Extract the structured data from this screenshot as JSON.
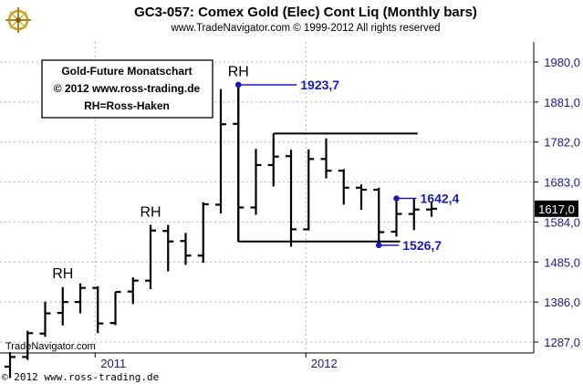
{
  "title": "GC3-057:  Comex Gold (Elec) Cont Liq  (Monthly bars)",
  "subtitle": "www.TradeNavigator.com © 1999-2012 All rights reserved",
  "watermark": "TradeNavigator.com",
  "footer": "© 2012  www.ross-trading.de",
  "info_box": [
    "Gold-Future Monatschart",
    "© 2012  www.ross-trading.de",
    "RH=Ross-Haken"
  ],
  "colors": {
    "bars": "#000000",
    "annotation": "#1a1ab8",
    "grid": "#b4b4b4",
    "current_price_bg": "#000000"
  },
  "chart_data": {
    "type": "ohlc",
    "interval": "monthly",
    "y_ticks": [
      "1287,0",
      "1386,0",
      "1485,0",
      "1584,0",
      "1683,0",
      "1782,0",
      "1881,0",
      "1980,0"
    ],
    "y_tick_values": [
      1287,
      1386,
      1485,
      1584,
      1683,
      1782,
      1881,
      1980
    ],
    "ylim": [
      1265,
      2015
    ],
    "x_ticks": [
      "2011",
      "2012"
    ],
    "grid": true,
    "current_price": "1617,0",
    "current_price_value": 1617,
    "bars": [
      {
        "date": "2010-08",
        "open": 1226,
        "high": 1262,
        "low": 1198,
        "close": 1250
      },
      {
        "date": "2010-09",
        "open": 1250,
        "high": 1315,
        "low": 1243,
        "close": 1309
      },
      {
        "date": "2010-10",
        "open": 1308,
        "high": 1387,
        "low": 1300,
        "close": 1358
      },
      {
        "date": "2010-11",
        "open": 1359,
        "high": 1423,
        "low": 1328,
        "close": 1386
      },
      {
        "date": "2010-12",
        "open": 1386,
        "high": 1432,
        "low": 1358,
        "close": 1421
      },
      {
        "date": "2011-01",
        "open": 1421,
        "high": 1425,
        "low": 1309,
        "close": 1333
      },
      {
        "date": "2011-02",
        "open": 1334,
        "high": 1411,
        "low": 1329,
        "close": 1411
      },
      {
        "date": "2011-03",
        "open": 1412,
        "high": 1447,
        "low": 1381,
        "close": 1439
      },
      {
        "date": "2011-04",
        "open": 1439,
        "high": 1577,
        "low": 1418,
        "close": 1563
      },
      {
        "date": "2011-05",
        "open": 1562,
        "high": 1577,
        "low": 1462,
        "close": 1536
      },
      {
        "date": "2011-06",
        "open": 1537,
        "high": 1557,
        "low": 1478,
        "close": 1501
      },
      {
        "date": "2011-07",
        "open": 1501,
        "high": 1633,
        "low": 1483,
        "close": 1628
      },
      {
        "date": "2011-08",
        "open": 1627,
        "high": 1913,
        "low": 1605,
        "close": 1826
      },
      {
        "date": "2011-09",
        "open": 1827,
        "high": 1923,
        "low": 1535,
        "close": 1620
      },
      {
        "date": "2011-10",
        "open": 1620,
        "high": 1765,
        "low": 1602,
        "close": 1725
      },
      {
        "date": "2011-11",
        "open": 1725,
        "high": 1803,
        "low": 1672,
        "close": 1746
      },
      {
        "date": "2011-12",
        "open": 1747,
        "high": 1763,
        "low": 1523,
        "close": 1566
      },
      {
        "date": "2012-01",
        "open": 1566,
        "high": 1764,
        "low": 1563,
        "close": 1740
      },
      {
        "date": "2012-02",
        "open": 1740,
        "high": 1791,
        "low": 1692,
        "close": 1711
      },
      {
        "date": "2012-03",
        "open": 1711,
        "high": 1715,
        "low": 1627,
        "close": 1669
      },
      {
        "date": "2012-04",
        "open": 1669,
        "high": 1677,
        "low": 1614,
        "close": 1664
      },
      {
        "date": "2012-05",
        "open": 1664,
        "high": 1669,
        "low": 1527,
        "close": 1559
      },
      {
        "date": "2012-06",
        "open": 1560,
        "high": 1641,
        "low": 1548,
        "close": 1604
      },
      {
        "date": "2012-07",
        "open": 1604,
        "high": 1642,
        "low": 1564,
        "close": 1615
      },
      {
        "date": "2012-08",
        "open": 1615,
        "high": 1632,
        "low": 1597,
        "close": 1617
      }
    ],
    "annotations": [
      {
        "label": "RH",
        "date": "2010-11",
        "price": 1432
      },
      {
        "label": "RH",
        "date": "2011-04",
        "price": 1584
      },
      {
        "label": "RH",
        "date": "2011-09",
        "price": 1932
      }
    ],
    "pivot_points": [
      {
        "label": "1923,7",
        "date": "2011-09",
        "price": 1923.7
      },
      {
        "label": "1642,4",
        "date": "2012-06",
        "price": 1642.4
      },
      {
        "label": "1526,7",
        "date": "2012-05",
        "price": 1526.7
      }
    ],
    "range_lines": [
      {
        "from": "2011-11",
        "to": "2012-07",
        "price": 1803
      },
      {
        "from": "2011-09",
        "to": "2012-06",
        "price": 1536
      }
    ]
  }
}
